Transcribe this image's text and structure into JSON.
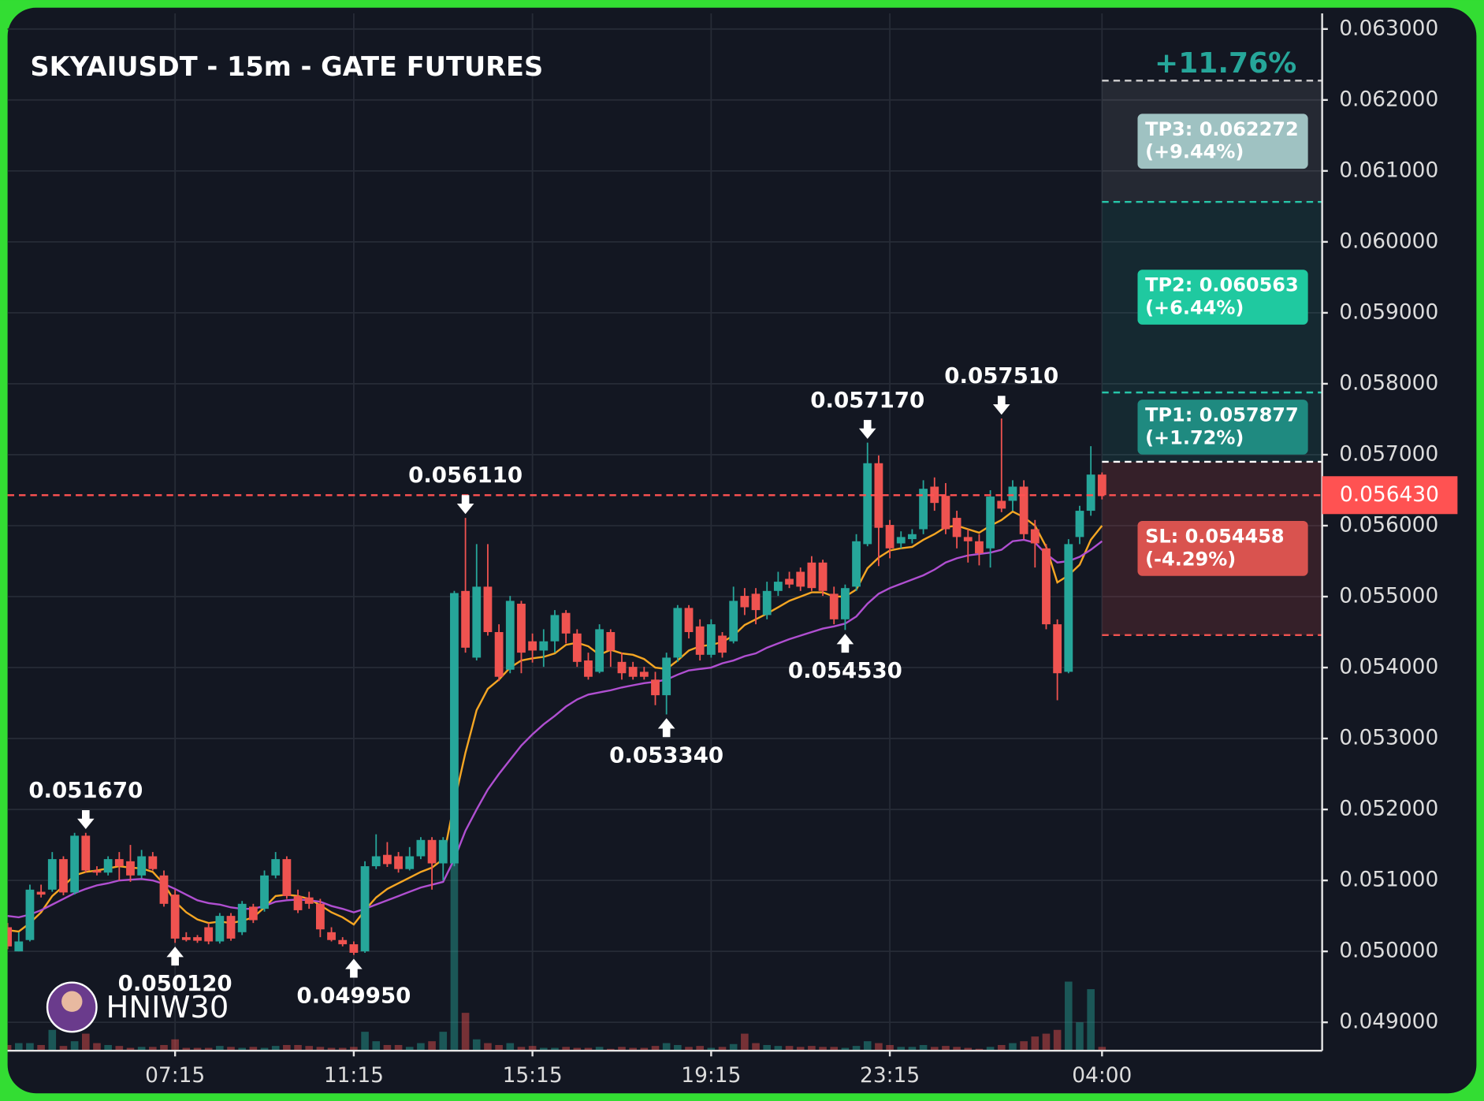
{
  "chart_data": {
    "type": "candlestick",
    "title": "SKYAIUSDT - 15m - GATE FUTURES",
    "categories": [
      "03:30",
      "03:45",
      "04:00",
      "04:15",
      "04:30",
      "04:45",
      "05:00",
      "05:15",
      "05:30",
      "05:45",
      "06:00",
      "06:15",
      "06:30",
      "06:45",
      "07:00",
      "07:15",
      "07:30",
      "07:45",
      "08:00",
      "08:15",
      "08:30",
      "08:45",
      "09:00",
      "09:15",
      "09:30",
      "09:45",
      "10:00",
      "10:15",
      "10:30",
      "10:45",
      "11:00",
      "11:15",
      "11:30",
      "11:45",
      "12:00",
      "12:15",
      "12:30",
      "12:45",
      "13:00",
      "13:15",
      "13:30",
      "13:45",
      "14:00",
      "14:15",
      "14:30",
      "14:45",
      "15:00",
      "15:15",
      "15:30",
      "15:45",
      "16:00",
      "16:15",
      "16:30",
      "16:45",
      "17:00",
      "17:15",
      "17:30",
      "17:45",
      "18:00",
      "18:15",
      "18:30",
      "18:45",
      "19:00",
      "19:15",
      "19:30",
      "19:45",
      "20:00",
      "20:15",
      "20:30",
      "20:45",
      "21:00",
      "21:15",
      "21:30",
      "21:45",
      "22:00",
      "22:15",
      "22:30",
      "22:45",
      "23:00",
      "23:15",
      "23:30",
      "23:45",
      "00:00",
      "00:15",
      "00:30",
      "00:45",
      "01:00",
      "01:15",
      "01:30",
      "01:45",
      "02:00",
      "02:15",
      "02:30",
      "02:45",
      "03:00",
      "03:15",
      "03:30",
      "03:45",
      "04:00"
    ],
    "open": [
      0.05034,
      0.05,
      0.05016,
      0.05084,
      0.05087,
      0.0513,
      0.05083,
      0.05163,
      0.05114,
      0.05111,
      0.0513,
      0.05127,
      0.05107,
      0.05134,
      0.05107,
      0.0508,
      0.0502,
      0.0502,
      0.05034,
      0.05014,
      0.0505,
      0.05027,
      0.05063,
      0.0506,
      0.05107,
      0.0513,
      0.05078,
      0.05076,
      0.05067,
      0.05027,
      0.05016,
      0.0501,
      0.05,
      0.0512,
      0.05136,
      0.05134,
      0.05116,
      0.05134,
      0.05157,
      0.05124,
      0.05124,
      0.05508,
      0.05414,
      0.05514,
      0.0545,
      0.05397,
      0.0549,
      0.05437,
      0.05424,
      0.05437,
      0.05477,
      0.05448,
      0.0541,
      0.05394,
      0.0545,
      0.05408,
      0.05401,
      0.05394,
      0.05383,
      0.05361,
      0.05414,
      0.05484,
      0.05458,
      0.05418,
      0.05445,
      0.05437,
      0.05501,
      0.05504,
      0.05474,
      0.05508,
      0.05525,
      0.05535,
      0.05548,
      0.05548,
      0.05504,
      0.05468,
      0.05514,
      0.05574,
      0.05688,
      0.05601,
      0.05575,
      0.05581,
      0.05595,
      0.05655,
      0.05642,
      0.05611,
      0.05584,
      0.05578,
      0.05568,
      0.05635,
      0.05635,
      0.05655,
      0.05595,
      0.05568,
      0.05461,
      0.05394,
      0.05584,
      0.05621,
      0.05672
    ],
    "high": [
      0.0504,
      0.05027,
      0.05094,
      0.05094,
      0.0514,
      0.05134,
      0.05167,
      0.05167,
      0.0512,
      0.05134,
      0.0514,
      0.0515,
      0.05143,
      0.0514,
      0.05114,
      0.05087,
      0.05027,
      0.05023,
      0.0504,
      0.05054,
      0.05054,
      0.05071,
      0.05067,
      0.05114,
      0.0514,
      0.05134,
      0.05087,
      0.05084,
      0.05074,
      0.05034,
      0.0502,
      0.05014,
      0.05127,
      0.05165,
      0.05154,
      0.0514,
      0.05147,
      0.05161,
      0.05161,
      0.05161,
      0.05508,
      0.05611,
      0.05574,
      0.05574,
      0.05461,
      0.05501,
      0.05494,
      0.05448,
      0.05454,
      0.05481,
      0.05481,
      0.05454,
      0.05421,
      0.05461,
      0.05454,
      0.05421,
      0.05408,
      0.05401,
      0.05394,
      0.05421,
      0.05488,
      0.05488,
      0.05468,
      0.05468,
      0.0545,
      0.05514,
      0.05512,
      0.05512,
      0.05521,
      0.05535,
      0.05535,
      0.05541,
      0.05557,
      0.05552,
      0.05514,
      0.05517,
      0.05588,
      0.05717,
      0.05699,
      0.05608,
      0.05592,
      0.05595,
      0.05664,
      0.05668,
      0.0566,
      0.05621,
      0.05595,
      0.05588,
      0.0565,
      0.05751,
      0.05664,
      0.05664,
      0.05608,
      0.05574,
      0.05468,
      0.05581,
      0.05628,
      0.05712,
      0.05675
    ],
    "low": [
      0.05003,
      0.05,
      0.05014,
      0.05076,
      0.05084,
      0.05079,
      0.0508,
      0.05111,
      0.05107,
      0.05107,
      0.051,
      0.05098,
      0.05103,
      0.05114,
      0.05063,
      0.05012,
      0.05014,
      0.05012,
      0.0501,
      0.05011,
      0.05015,
      0.05023,
      0.0504,
      0.05056,
      0.05103,
      0.05074,
      0.05054,
      0.0506,
      0.0502,
      0.05014,
      0.05007,
      0.04995,
      0.04998,
      0.05116,
      0.05119,
      0.05111,
      0.05114,
      0.0513,
      0.05087,
      0.051,
      0.0512,
      0.05421,
      0.0541,
      0.05445,
      0.05381,
      0.05392,
      0.05392,
      0.05407,
      0.05401,
      0.05421,
      0.05434,
      0.05401,
      0.05383,
      0.05392,
      0.05401,
      0.05383,
      0.05383,
      0.05383,
      0.05347,
      0.05334,
      0.05408,
      0.05441,
      0.0541,
      0.05414,
      0.05414,
      0.05434,
      0.05474,
      0.05461,
      0.05468,
      0.05501,
      0.05512,
      0.05508,
      0.05508,
      0.05501,
      0.05461,
      0.05453,
      0.05508,
      0.05571,
      0.05543,
      0.05554,
      0.05568,
      0.05575,
      0.05588,
      0.05621,
      0.05588,
      0.05568,
      0.05548,
      0.05544,
      0.05541,
      0.05619,
      0.05621,
      0.05581,
      0.05541,
      0.05454,
      0.05354,
      0.05392,
      0.05574,
      0.05614,
      0.05637
    ],
    "close": [
      0.05007,
      0.05014,
      0.05087,
      0.0508,
      0.0513,
      0.05083,
      0.05163,
      0.05114,
      0.05111,
      0.0513,
      0.0512,
      0.05107,
      0.05134,
      0.05116,
      0.05067,
      0.05018,
      0.05016,
      0.05015,
      0.05014,
      0.0505,
      0.05018,
      0.05067,
      0.05044,
      0.05107,
      0.0513,
      0.05078,
      0.05058,
      0.05067,
      0.05031,
      0.05016,
      0.0501,
      0.04998,
      0.0512,
      0.05134,
      0.05123,
      0.05116,
      0.05134,
      0.05157,
      0.05124,
      0.05157,
      0.05505,
      0.05428,
      0.05514,
      0.0545,
      0.05387,
      0.05494,
      0.05421,
      0.05424,
      0.05437,
      0.05474,
      0.05448,
      0.05408,
      0.05387,
      0.05454,
      0.05424,
      0.05392,
      0.05387,
      0.05387,
      0.05361,
      0.05414,
      0.05484,
      0.0545,
      0.05418,
      0.05461,
      0.05421,
      0.05494,
      0.05485,
      0.05481,
      0.05508,
      0.05521,
      0.05517,
      0.05514,
      0.05512,
      0.05508,
      0.05468,
      0.05512,
      0.05578,
      0.05688,
      0.05597,
      0.05568,
      0.05584,
      0.05588,
      0.05652,
      0.05632,
      0.05595,
      0.05584,
      0.05578,
      0.05561,
      0.05641,
      0.05624,
      0.05655,
      0.05588,
      0.05575,
      0.05461,
      0.05392,
      0.05574,
      0.05621,
      0.05672,
      0.05643
    ],
    "volume": [
      6,
      8,
      8,
      6,
      22,
      5,
      10,
      18,
      8,
      6,
      5,
      3,
      4,
      4,
      6,
      12,
      3,
      3,
      3,
      5,
      4,
      3,
      4,
      3,
      5,
      6,
      6,
      5,
      4,
      3,
      3,
      4,
      20,
      10,
      6,
      6,
      4,
      8,
      10,
      20,
      200,
      40,
      12,
      8,
      6,
      8,
      4,
      5,
      3,
      3,
      4,
      3,
      3,
      4,
      2,
      4,
      3,
      3,
      5,
      8,
      6,
      4,
      5,
      3,
      4,
      7,
      18,
      8,
      6,
      5,
      5,
      4,
      5,
      4,
      4,
      3,
      5,
      10,
      8,
      6,
      4,
      4,
      6,
      4,
      5,
      4,
      3,
      2,
      4,
      6,
      8,
      10,
      15,
      18,
      22,
      73,
      30,
      65,
      4
    ],
    "up_color": "#26a69a",
    "down_color": "#ef5350",
    "lines": [
      {
        "color": "#f5a623",
        "values": [
          0.0503,
          0.05028,
          0.0504,
          0.05055,
          0.05078,
          0.05092,
          0.05107,
          0.05112,
          0.05114,
          0.05117,
          0.0512,
          0.05118,
          0.05117,
          0.05112,
          0.05095,
          0.0507,
          0.05055,
          0.05045,
          0.0504,
          0.05042,
          0.0504,
          0.05043,
          0.05048,
          0.05062,
          0.05078,
          0.0508,
          0.05078,
          0.05074,
          0.05065,
          0.05055,
          0.05048,
          0.05038,
          0.05058,
          0.05076,
          0.05088,
          0.05096,
          0.05104,
          0.05112,
          0.05118,
          0.0513,
          0.0521,
          0.0528,
          0.0534,
          0.0537,
          0.05383,
          0.054,
          0.0541,
          0.05413,
          0.05415,
          0.0542,
          0.05432,
          0.05435,
          0.0543,
          0.05418,
          0.05425,
          0.0542,
          0.05418,
          0.05412,
          0.054,
          0.05398,
          0.0541,
          0.05424,
          0.0543,
          0.05432,
          0.05436,
          0.05445,
          0.0546,
          0.05468,
          0.05476,
          0.05485,
          0.05494,
          0.055,
          0.05506,
          0.05506,
          0.055,
          0.055,
          0.0551,
          0.0554,
          0.05555,
          0.05565,
          0.05568,
          0.0557,
          0.0558,
          0.05588,
          0.05598,
          0.056,
          0.05595,
          0.0559,
          0.056,
          0.05608,
          0.0562,
          0.05612,
          0.056,
          0.0557,
          0.0552,
          0.0553,
          0.05545,
          0.0558,
          0.056
        ]
      },
      {
        "color": "#b04fd1",
        "values": [
          0.0505,
          0.05048,
          0.05052,
          0.05058,
          0.05066,
          0.05074,
          0.05082,
          0.05088,
          0.05093,
          0.05096,
          0.051,
          0.05101,
          0.05102,
          0.051,
          0.05095,
          0.05088,
          0.0508,
          0.05072,
          0.05068,
          0.05066,
          0.05062,
          0.0506,
          0.0506,
          0.05064,
          0.0507,
          0.05072,
          0.05073,
          0.05072,
          0.0507,
          0.05064,
          0.0506,
          0.05055,
          0.0506,
          0.05066,
          0.05072,
          0.05078,
          0.05084,
          0.0509,
          0.05094,
          0.05098,
          0.0513,
          0.0517,
          0.052,
          0.05228,
          0.0525,
          0.0527,
          0.0529,
          0.05306,
          0.0532,
          0.05332,
          0.05345,
          0.05355,
          0.05362,
          0.05365,
          0.05368,
          0.05372,
          0.05375,
          0.05378,
          0.0538,
          0.05383,
          0.0539,
          0.05396,
          0.05398,
          0.054,
          0.05406,
          0.0541,
          0.05416,
          0.0542,
          0.05428,
          0.05434,
          0.0544,
          0.05445,
          0.0545,
          0.05455,
          0.05458,
          0.05462,
          0.05472,
          0.0549,
          0.05504,
          0.05512,
          0.05518,
          0.05524,
          0.0553,
          0.05538,
          0.05548,
          0.05554,
          0.05558,
          0.0556,
          0.05562,
          0.05566,
          0.05578,
          0.0558,
          0.05576,
          0.0556,
          0.05548,
          0.0555,
          0.05556,
          0.05566,
          0.05578
        ]
      }
    ],
    "ylim": [
      0.0486,
      0.0633
    ],
    "yticks": [
      {
        "value": 0.049,
        "label": "0.049000"
      },
      {
        "value": 0.05,
        "label": "0.050000"
      },
      {
        "value": 0.051,
        "label": "0.051000"
      },
      {
        "value": 0.052,
        "label": "0.052000"
      },
      {
        "value": 0.053,
        "label": "0.053000"
      },
      {
        "value": 0.054,
        "label": "0.054000"
      },
      {
        "value": 0.055,
        "label": "0.055000"
      },
      {
        "value": 0.056,
        "label": "0.056000"
      },
      {
        "value": 0.057,
        "label": "0.057000"
      },
      {
        "value": 0.058,
        "label": "0.058000"
      },
      {
        "value": 0.059,
        "label": "0.059000"
      },
      {
        "value": 0.06,
        "label": "0.060000"
      },
      {
        "value": 0.061,
        "label": "0.061000"
      },
      {
        "value": 0.062,
        "label": "0.062000"
      },
      {
        "value": 0.063,
        "label": "0.063000"
      }
    ],
    "xticks": [
      "07:15",
      "11:15",
      "15:15",
      "19:15",
      "23:15",
      "04:00"
    ],
    "grid": true,
    "annotations": [
      {
        "x": "05:15",
        "value": 0.05167,
        "label": "0.051670",
        "side": "above"
      },
      {
        "x": "07:15",
        "value": 0.05012,
        "label": "0.050120",
        "side": "below"
      },
      {
        "x": "11:15",
        "value": 0.04995,
        "label": "0.049950",
        "side": "below"
      },
      {
        "x": "13:45",
        "value": 0.05611,
        "label": "0.056110",
        "side": "above"
      },
      {
        "x": "18:15",
        "value": 0.05334,
        "label": "0.053340",
        "side": "below"
      },
      {
        "x": "22:15",
        "value": 0.05453,
        "label": "0.054530",
        "side": "below"
      },
      {
        "x": "22:45",
        "value": 0.05717,
        "label": "0.057170",
        "side": "above"
      },
      {
        "x": "01:45",
        "value": 0.05751,
        "label": "0.057510",
        "side": "above"
      }
    ],
    "last_price": {
      "value": 0.05643,
      "label": "0.056430",
      "color": "#ff5252"
    },
    "entry": 0.0569,
    "gain_label": "+11.76%",
    "targets": [
      {
        "label": "TP3: 0.062272",
        "change": "(+9.44%)",
        "price": 0.062272,
        "color": "#9fc2c2"
      },
      {
        "label": "TP2: 0.060563",
        "change": "(+6.44%)",
        "price": 0.060563,
        "color": "#1fc9a0"
      },
      {
        "label": "TP1: 0.057877",
        "change": "(+1.72%)",
        "price": 0.057877,
        "color": "#1f8a80"
      }
    ],
    "stop": {
      "label": "SL: 0.054458",
      "change": "(-4.29%)",
      "price": 0.054458,
      "color": "#d9534f"
    },
    "watermark": "HNIW30"
  }
}
